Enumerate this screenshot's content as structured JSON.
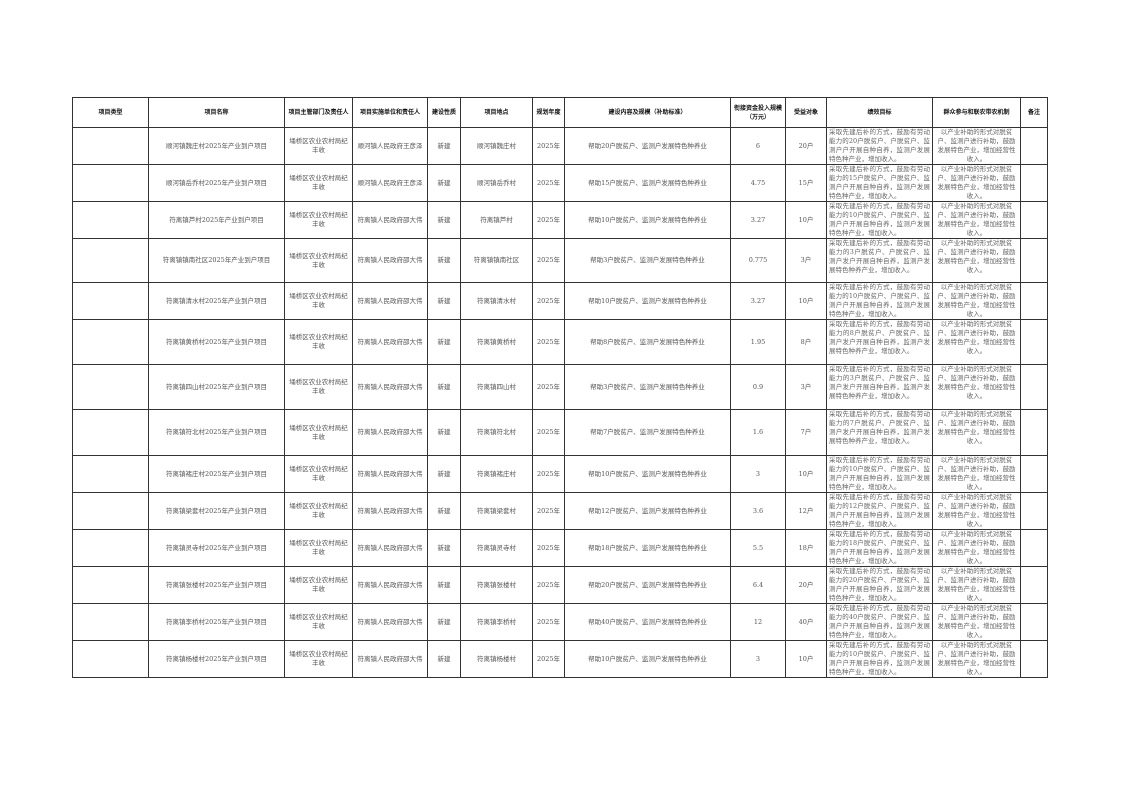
{
  "headers": [
    "项目类型",
    "项目名称",
    "项目主管部门及责任人",
    "项目实施单位和责任人",
    "建设性质",
    "项目地点",
    "规划年度",
    "建设内容及规模（补助标准）",
    "衔接资金投入规模（万元）",
    "受益对象",
    "绩效目标",
    "群众参与和联农带农机制",
    "备注"
  ],
  "rows": [
    {
      "type": "",
      "name": "顺河镇魏庄村2025年产业到户项目",
      "dept": "埇桥区农业农村局纪丰收",
      "unit": "顺河镇人民政府王彦泽",
      "nature": "新建",
      "location": "顺河镇魏庄村",
      "year": "2025年",
      "content": "帮助20户脱贫户、监测户发展特色种养业",
      "funds": "6",
      "beneficiary": "20户",
      "goal": "采取先建后补的方式，鼓励有劳动能力的20户脱贫户、户脱贫户、监测户户开展自种自养，监测户发展特色种产业，增加收入。",
      "mechanism": "以产业补助的形式对脱贫户、监测户进行补助，鼓励发展特色产业，增加经营性收入。",
      "note": ""
    },
    {
      "type": "",
      "name": "顺河镇岳乔村2025年产业到户项目",
      "dept": "埇桥区农业农村局纪丰收",
      "unit": "顺河镇人民政府王彦泽",
      "nature": "新建",
      "location": "顺河镇岳乔村",
      "year": "2025年",
      "content": "帮助15户脱贫户、监测户发展特色种养业",
      "funds": "4.75",
      "beneficiary": "15户",
      "goal": "采取先建后补的方式，鼓励有劳动能力的15户脱贫户、户脱贫户、监测户户开展自种自养，监测户发展特色种产业，增加收入。",
      "mechanism": "以产业补助的形式对脱贫户、监测户进行补助，鼓励发展特色产业，增加经营性收入。",
      "note": ""
    },
    {
      "type": "",
      "name": "符离镇芦村2025年产业到户项目",
      "dept": "埇桥区农业农村局纪丰收",
      "unit": "符离镇人民政府邵大伟",
      "nature": "新建",
      "location": "符离镇芦村",
      "year": "2025年",
      "content": "帮助10户脱贫户、监测户发展特色种养业",
      "funds": "3.27",
      "beneficiary": "10户",
      "goal": "采取先建后补的方式，鼓励有劳动能力的10户脱贫户、户脱贫户、监测户户开展自种自养，监测户发展特色种产业，增加收入。",
      "mechanism": "以产业补助的形式对脱贫户、监测户进行补助，鼓励发展特色产业，增加经营性收入。",
      "note": ""
    },
    {
      "type": "",
      "name": "符离镇镇南社区2025年产业到户项目",
      "dept": "埇桥区农业农村局纪丰收",
      "unit": "符离镇人民政府邵大伟",
      "nature": "新建",
      "location": "符离镇镇南社区",
      "year": "2025年",
      "content": "帮助3户脱贫户、监测户发展特色种养业",
      "funds": "0.775",
      "beneficiary": "3户",
      "goal": "采取先建后补的方式，鼓励有劳动能力的3户脱贫户、户脱贫户、监测户发户开展自种自养，监测户发展特色种养产业，增加收入。",
      "mechanism": "以产业补助的形式对脱贫户、监测户进行补助，鼓励发展特色产业，增加经营性收入。",
      "note": ""
    },
    {
      "type": "",
      "name": "符离镇清水村2025年产业到户项目",
      "dept": "埇桥区农业农村局纪丰收",
      "unit": "符离镇人民政府邵大伟",
      "nature": "新建",
      "location": "符离镇清水村",
      "year": "2025年",
      "content": "帮助10户脱贫户、监测户发展特色种养业",
      "funds": "3.27",
      "beneficiary": "10户",
      "goal": "采取先建后补的方式，鼓励有劳动能力的10户脱贫户、户脱贫户、监测户户开展自种自养，监测户发展特色种产业，增加收入。",
      "mechanism": "以产业补助的形式对脱贫户、监测户进行补助，鼓励发展特色产业，增加经营性收入。",
      "note": ""
    },
    {
      "type": "",
      "name": "符离镇黄桥村2025年产业到户项目",
      "dept": "埇桥区农业农村局纪丰收",
      "unit": "符离镇人民政府邵大伟",
      "nature": "新建",
      "location": "符离镇黄桥村",
      "year": "2025年",
      "content": "帮助8户脱贫户、监测户发展特色种养业",
      "funds": "1.95",
      "beneficiary": "8户",
      "goal": "采取先建后补的方式，鼓励有劳动能力的8户脱贫户、户脱贫户、监测户发户开展自种自养，监测户发展特色种养产业，增加收入。",
      "mechanism": "以产业补助的形式对脱贫户、监测户进行补助，鼓励发展特色产业，增加经营性收入。",
      "note": ""
    },
    {
      "type": "",
      "name": "符离镇四山村2025年产业到户项目",
      "dept": "埇桥区农业农村局纪丰收",
      "unit": "符离镇人民政府邵大伟",
      "nature": "新建",
      "location": "符离镇四山村",
      "year": "2025年",
      "content": "帮助3户脱贫户、监测户发展特色种养业",
      "funds": "0.9",
      "beneficiary": "3户",
      "goal": "采取先建后补的方式，鼓励有劳动能力的3户脱贫户、户脱贫户、监测户发户开展自种自养，监测户发展特色种养产业，增加收入。",
      "mechanism": "以产业补助的形式对脱贫户、监测户进行补助，鼓励发展特色产业，增加经营性收入。",
      "note": ""
    },
    {
      "type": "",
      "name": "符离镇符北村2025年产业到户项目",
      "dept": "埇桥区农业农村局纪丰收",
      "unit": "符离镇人民政府邵大伟",
      "nature": "新建",
      "location": "符离镇符北村",
      "year": "2025年",
      "content": "帮助7户脱贫户、监测户发展特色种养业",
      "funds": "1.6",
      "beneficiary": "7户",
      "goal": "采取先建后补的方式，鼓励有劳动能力的7户脱贫户、户脱贫户、监测户发户开展自种自养，监测户发展特色种养产业，增加收入。",
      "mechanism": "以产业补助的形式对脱贫户、监测户进行补助，鼓励发展特色产业，增加经营性收入。",
      "note": ""
    },
    {
      "type": "",
      "name": "符离镇褚庄村2025年产业到户项目",
      "dept": "埇桥区农业农村局纪丰收",
      "unit": "符离镇人民政府邵大伟",
      "nature": "新建",
      "location": "符离镇褚庄村",
      "year": "2025年",
      "content": "帮助10户脱贫户、监测户发展特色种养业",
      "funds": "3",
      "beneficiary": "10户",
      "goal": "采取先建后补的方式，鼓励有劳动能力的10户脱贫户、户脱贫户、监测户户开展自种自养，监测户发展特色种产业，增加收入。",
      "mechanism": "以产业补助的形式对脱贫户、监测户进行补助，鼓励发展特色产业，增加经营性收入。",
      "note": ""
    },
    {
      "type": "",
      "name": "符离镇梁套村2025年产业到户项目",
      "dept": "埇桥区农业农村局纪丰收",
      "unit": "符离镇人民政府邵大伟",
      "nature": "新建",
      "location": "符离镇梁套村",
      "year": "2025年",
      "content": "帮助12户脱贫户、监测户发展特色种养业",
      "funds": "3.6",
      "beneficiary": "12户",
      "goal": "采取先建后补的方式，鼓励有劳动能力的12户脱贫户、户脱贫户、监测户户开展自种自养，监测户发展特色种产业，增加收入。",
      "mechanism": "以产业补助的形式对脱贫户、监测户进行补助，鼓励发展特色产业，增加经营性收入。",
      "note": ""
    },
    {
      "type": "",
      "name": "符离镇灵寺村2025年产业到户项目",
      "dept": "埇桥区农业农村局纪丰收",
      "unit": "符离镇人民政府邵大伟",
      "nature": "新建",
      "location": "符离镇灵寺村",
      "year": "2025年",
      "content": "帮助18户脱贫户、监测户发展特色种养业",
      "funds": "5.5",
      "beneficiary": "18户",
      "goal": "采取先建后补的方式，鼓励有劳动能力的18户脱贫户、户脱贫户、监测户户开展自种自养，监测户发展特色种产业，增加收入。",
      "mechanism": "以产业补助的形式对脱贫户、监测户进行补助，鼓励发展特色产业，增加经营性收入。",
      "note": ""
    },
    {
      "type": "",
      "name": "符离镇张楼村2025年产业到户项目",
      "dept": "埇桥区农业农村局纪丰收",
      "unit": "符离镇人民政府邵大伟",
      "nature": "新建",
      "location": "符离镇张楼村",
      "year": "2025年",
      "content": "帮助20户脱贫户、监测户发展特色种养业",
      "funds": "6.4",
      "beneficiary": "20户",
      "goal": "采取先建后补的方式，鼓励有劳动能力的20户脱贫户、户脱贫户、监测户户开展自种自养，监测户发展特色种产业，增加收入。",
      "mechanism": "以产业补助的形式对脱贫户、监测户进行补助，鼓励发展特色产业，增加经营性收入。",
      "note": ""
    },
    {
      "type": "",
      "name": "符离镇李桥村2025年产业到户项目",
      "dept": "埇桥区农业农村局纪丰收",
      "unit": "符离镇人民政府邵大伟",
      "nature": "新建",
      "location": "符离镇李桥村",
      "year": "2025年",
      "content": "帮助40户脱贫户、监测户发展特色种养业",
      "funds": "12",
      "beneficiary": "40户",
      "goal": "采取先建后补的方式，鼓励有劳动能力的40户脱贫户、户脱贫户、监测户户开展自种自养，监测户发展特色种产业，增加收入。",
      "mechanism": "以产业补助的形式对脱贫户、监测户进行补助，鼓励发展特色产业，增加经营性收入。",
      "note": ""
    },
    {
      "type": "",
      "name": "符离镇杨楼村2025年产业到户项目",
      "dept": "埇桥区农业农村局纪丰收",
      "unit": "符离镇人民政府邵大伟",
      "nature": "新建",
      "location": "符离镇杨楼村",
      "year": "2025年",
      "content": "帮助10户脱贫户、监测户发展特色种养业",
      "funds": "3",
      "beneficiary": "10户",
      "goal": "采取先建后补的方式，鼓励有劳动能力的10户脱贫户、户脱贫户、监测户户开展自种自养，监测户发展特色种产业，增加收入。",
      "mechanism": "以产业补助的形式对脱贫户、监测户进行补助，鼓励发展特色产业，增加经营性收入。",
      "note": ""
    }
  ]
}
